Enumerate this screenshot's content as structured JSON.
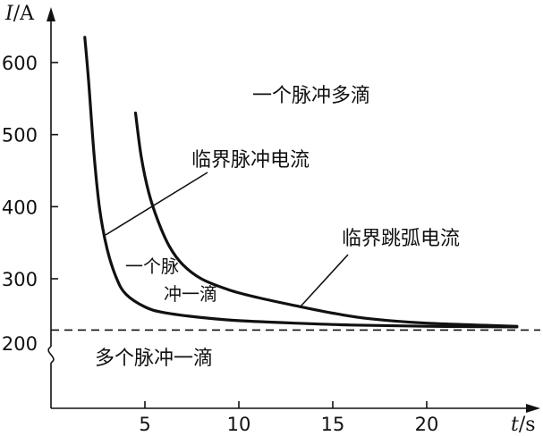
{
  "chart_data": {
    "type": "line",
    "xlabel_var": "t",
    "xlabel_unit": "/s",
    "ylabel_var": "I",
    "ylabel_unit": "/A",
    "xlim": [
      0,
      25
    ],
    "ylim": [
      200,
      650
    ],
    "axis_break": "y",
    "x_ticks": [
      5,
      10,
      15,
      20
    ],
    "y_ticks": [
      200,
      300,
      400,
      500,
      600
    ],
    "series": [
      {
        "x": [
          1.8,
          2.0,
          2.3,
          2.6,
          3.0,
          3.5,
          4.0,
          5.0,
          6.0,
          8.0,
          10.0,
          13.0,
          16.0,
          20.0,
          24.8
        ],
        "y": [
          635,
          575,
          470,
          395,
          340,
          300,
          275,
          255,
          246,
          238,
          233,
          229,
          226,
          224,
          223
        ]
      },
      {
        "x": [
          4.5,
          4.8,
          5.2,
          5.7,
          6.3,
          7.0,
          8.0,
          9.5,
          11.0,
          13.0,
          15.0,
          17.0,
          20.0,
          24.8
        ],
        "y": [
          530,
          470,
          420,
          380,
          345,
          320,
          300,
          282,
          270,
          257,
          245,
          236,
          229,
          224
        ]
      },
      {
        "y": [
          218
        ]
      }
    ],
    "annotations": [
      "一个脉冲多滴",
      "临界脉冲电流",
      "临界跳弧电流",
      "一个脉",
      "冲一滴",
      "多个脉冲一滴"
    ]
  }
}
